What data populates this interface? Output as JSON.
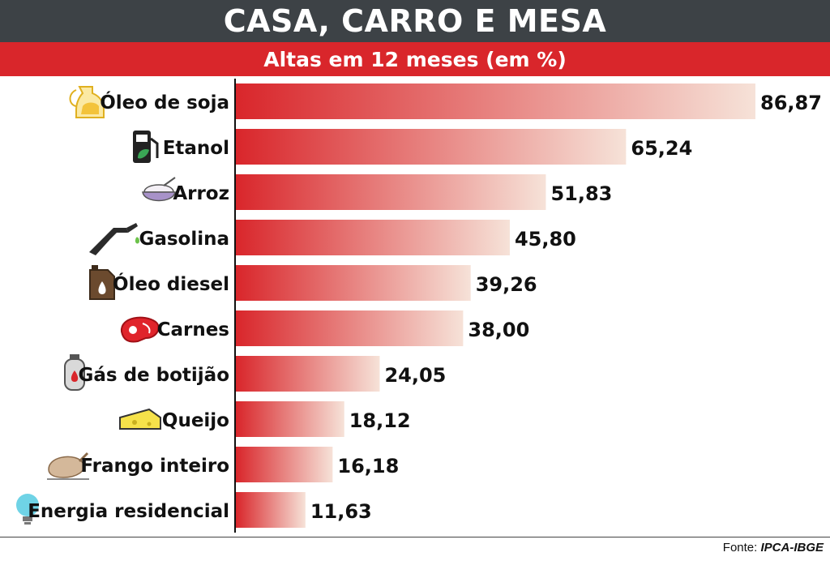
{
  "title": "CASA, CARRO E MESA",
  "subtitle": "Altas em 12 meses (em %)",
  "source": {
    "label": "Fonte:",
    "value": "IPCA-IBGE"
  },
  "colors": {
    "title_bg": "#3d4246",
    "subtitle_bg": "#d9262b",
    "bar_start": "#d9262b",
    "bar_end": "#f6e2d8"
  },
  "chart_data": {
    "type": "bar",
    "orientation": "horizontal",
    "title": "CASA, CARRO E MESA",
    "subtitle": "Altas em 12 meses (em %)",
    "categories": [
      "Óleo de soja",
      "Etanol",
      "Arroz",
      "Gasolina",
      "Óleo diesel",
      "Carnes",
      "Gás de botijão",
      "Queijo",
      "Frango inteiro",
      "Energia residencial"
    ],
    "values": [
      86.87,
      65.24,
      51.83,
      45.8,
      39.26,
      38.0,
      24.05,
      18.12,
      16.18,
      11.63
    ],
    "value_labels": [
      "86,87",
      "65,24",
      "51,83",
      "45,80",
      "39,26",
      "38,00",
      "24,05",
      "18,12",
      "16,18",
      "11,63"
    ],
    "icons": [
      "oil-bottle-icon",
      "ethanol-pump-icon",
      "rice-bowl-icon",
      "fuel-nozzle-icon",
      "diesel-can-icon",
      "meat-steak-icon",
      "gas-cylinder-icon",
      "cheese-icon",
      "roast-chicken-icon",
      "light-bulb-icon"
    ],
    "xlim": [
      0,
      86.87
    ],
    "grid": false,
    "legend": "none"
  }
}
